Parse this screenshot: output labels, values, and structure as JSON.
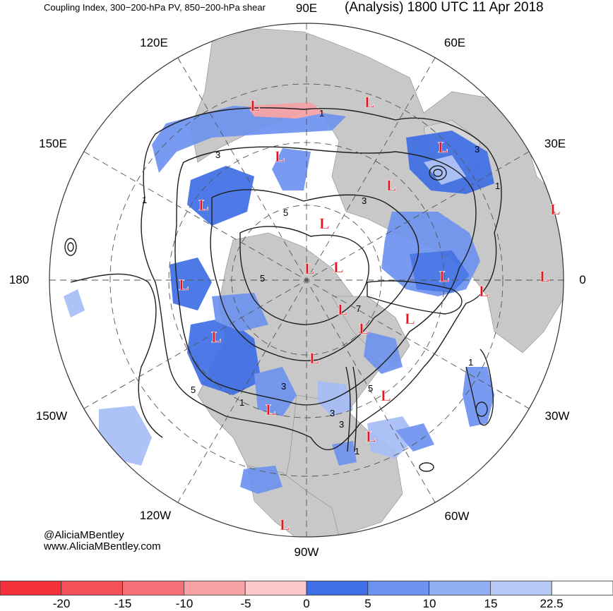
{
  "header": {
    "title_left": "Coupling Index, 300−200-hPa PV, 850−200-hPa shear",
    "title_right": "(Analysis) 1800 UTC 11 Apr 2018"
  },
  "map": {
    "projection": "north-polar-stereographic",
    "longitude_labels": [
      "90E",
      "60E",
      "30E",
      "0",
      "30W",
      "60W",
      "90W",
      "120W",
      "150W",
      "180",
      "150E",
      "120E"
    ],
    "low_marker": "L",
    "low_count": 21,
    "contour_labels": [
      "1",
      "3",
      "3",
      "5",
      "5",
      "3",
      "7",
      "3",
      "5",
      "5",
      "3",
      "1",
      "1",
      "1",
      "3",
      "1",
      "1"
    ],
    "colors": {
      "land": "#c8c8c8",
      "ocean": "#ffffff",
      "contour": "#1e1e1e",
      "low_marker": "#e8101a",
      "blue_strong": "#3f6fe6",
      "blue_medium": "#6d93f0",
      "blue_light": "#a6bdf6",
      "red_light": "#f5a0a6"
    }
  },
  "credits": {
    "line1": "@AliciaMBentley",
    "line2": "www.AliciaMBentley.com"
  },
  "colorbar": {
    "bins": [
      {
        "color": "#f5323c"
      },
      {
        "color": "#f5505a"
      },
      {
        "color": "#f57078"
      },
      {
        "color": "#f7a0a6"
      },
      {
        "color": "#fbc8cc"
      },
      {
        "color": "#3f6fe6"
      },
      {
        "color": "#6d93f0"
      },
      {
        "color": "#91adf3"
      },
      {
        "color": "#b7caf7"
      },
      {
        "color": "#ffffff"
      }
    ],
    "tick_labels": [
      "-20",
      "-15",
      "-10",
      "-5",
      "0",
      "5",
      "10",
      "15",
      "22.5"
    ]
  }
}
